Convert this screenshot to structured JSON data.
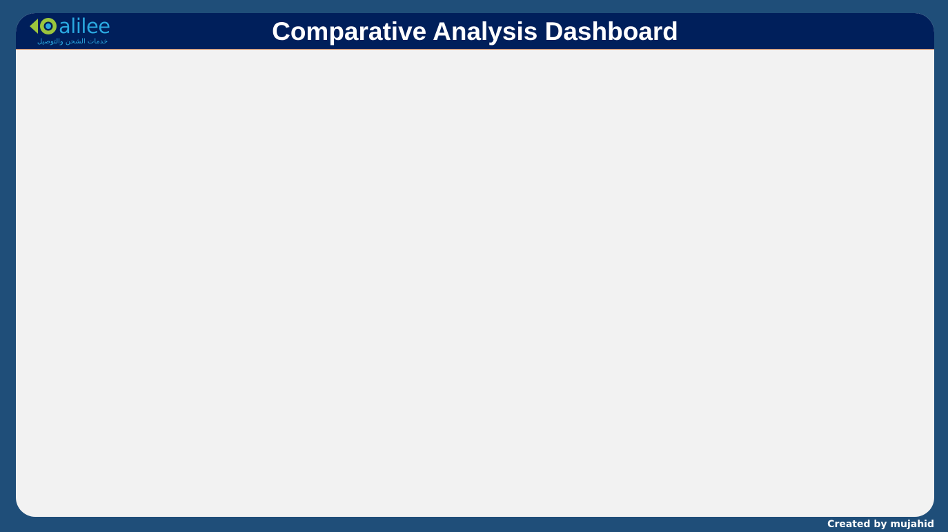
{
  "header": {
    "title": "Comparative Analysis Dashboard",
    "logo": {
      "wordmark": "alilee",
      "tagline": "خدمات الشحن والتوصيل",
      "icon": "dalilee-logo-mark-icon"
    }
  },
  "footer": {
    "credit": "Created by mujahid"
  },
  "colors": {
    "background": "#1f4e79",
    "canvas": "#f2f2f2",
    "header": "#001f5b",
    "logo_green": "#9bc53d",
    "logo_blue": "#2aa8e0",
    "header_border": "#c9875a"
  }
}
